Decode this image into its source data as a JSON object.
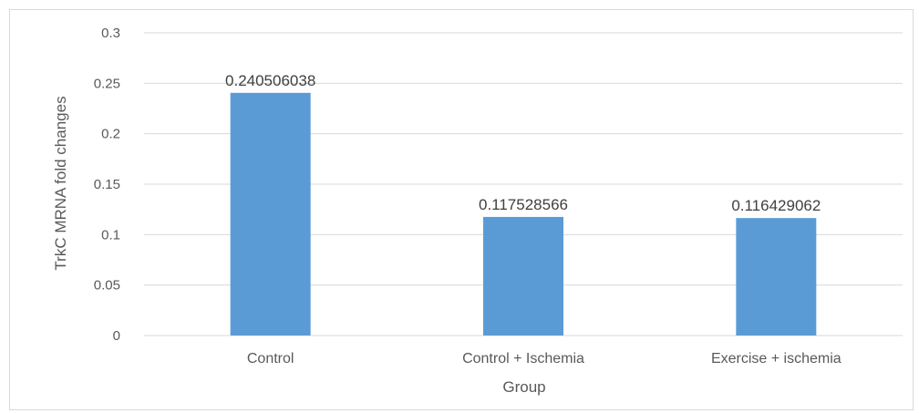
{
  "chart_data": {
    "type": "bar",
    "categories": [
      "Control",
      "Control + Ischemia",
      "Exercise + ischemia"
    ],
    "values": [
      0.240506038,
      0.117528566,
      0.116429062
    ],
    "data_labels": [
      "0.240506038",
      "0.117528566",
      "0.116429062"
    ],
    "title": "",
    "xlabel": "Group",
    "ylabel": "TrkC MRNA fold changes",
    "ylim": [
      0,
      0.3
    ],
    "yticks": [
      0,
      0.05,
      0.1,
      0.15,
      0.2,
      0.25,
      0.3
    ],
    "ytick_labels": [
      "0",
      "0.05",
      "0.1",
      "0.15",
      "0.2",
      "0.25",
      "0.3"
    ],
    "grid": true,
    "legend": "none",
    "bar_color": "#5b9bd5",
    "grid_color": "#d9d9d9"
  }
}
